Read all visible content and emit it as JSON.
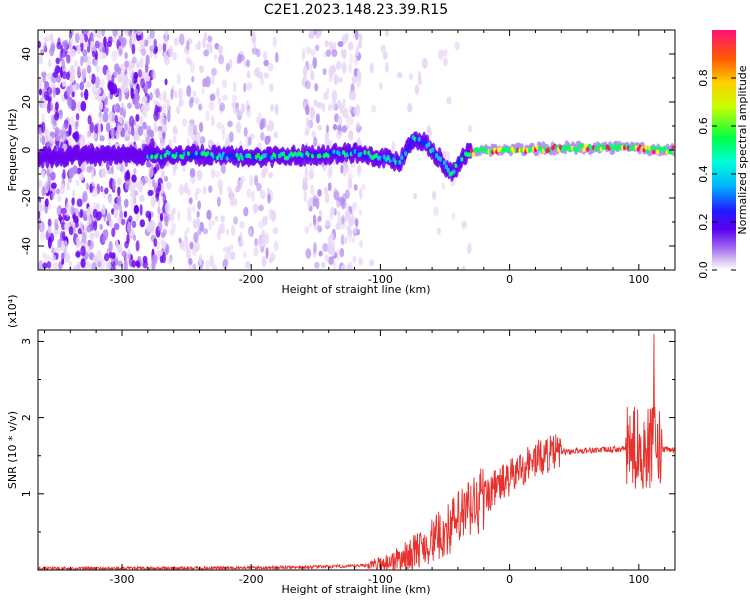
{
  "figure": {
    "title": "C2E1.2023.148.23.39.R15"
  },
  "chart_data": [
    {
      "type": "heatmap",
      "xlabel": "Height of straight line (km)",
      "ylabel": "Frequency (Hz)",
      "xlim": [
        -365,
        128
      ],
      "ylim": [
        -50,
        50
      ],
      "x_ticks": [
        -300,
        -200,
        -100,
        0,
        100
      ],
      "y_ticks": [
        -40,
        -20,
        0,
        20,
        40
      ],
      "colorbar": {
        "label": "Normalized spectral amplitude",
        "range": [
          0,
          1
        ],
        "ticks": [
          0.0,
          0.2,
          0.4,
          0.6,
          0.8
        ]
      },
      "colormap": [
        "#ffffff",
        "#e8d6f5",
        "#b48cf0",
        "#6a00f0",
        "#1f1fff",
        "#00c8ff",
        "#00ff66",
        "#ffff00",
        "#ff6600",
        "#ff1060"
      ],
      "ridge": [
        {
          "x": -365,
          "y": -3
        },
        {
          "x": -300,
          "y": -2
        },
        {
          "x": -250,
          "y": -2
        },
        {
          "x": -200,
          "y": -3
        },
        {
          "x": -150,
          "y": -2
        },
        {
          "x": -120,
          "y": -1
        },
        {
          "x": -100,
          "y": -3
        },
        {
          "x": -85,
          "y": -5
        },
        {
          "x": -75,
          "y": 5
        },
        {
          "x": -65,
          "y": 3
        },
        {
          "x": -55,
          "y": -3
        },
        {
          "x": -45,
          "y": -10
        },
        {
          "x": -35,
          "y": -2
        },
        {
          "x": -20,
          "y": 0
        },
        {
          "x": 0,
          "y": 0
        },
        {
          "x": 50,
          "y": 1
        },
        {
          "x": 100,
          "y": 1
        },
        {
          "x": 110,
          "y": 0
        },
        {
          "x": 128,
          "y": 0
        }
      ]
    },
    {
      "type": "line",
      "xlabel": "Height of straight line (km)",
      "ylabel": "SNR (10 * v/v)",
      "y_multiplier": "(x10⁴)",
      "xlim": [
        -365,
        128
      ],
      "ylim": [
        0,
        3.15
      ],
      "x_ticks": [
        -300,
        -200,
        -100,
        0,
        100
      ],
      "y_ticks": [
        1,
        2,
        3
      ],
      "color": "#e8302c",
      "series": [
        {
          "x": [
            -365,
            -300,
            -200,
            -150,
            -120,
            -100,
            -90,
            -80,
            -70,
            -60,
            -50,
            -40,
            -30,
            -20,
            -10,
            0,
            10,
            20,
            30,
            40,
            60,
            80,
            100,
            110,
            115,
            128
          ],
          "y": [
            0.02,
            0.02,
            0.03,
            0.04,
            0.05,
            0.08,
            0.12,
            0.18,
            0.28,
            0.38,
            0.5,
            0.65,
            0.8,
            0.95,
            1.1,
            1.2,
            1.35,
            1.45,
            1.52,
            1.55,
            1.57,
            1.58,
            1.6,
            1.6,
            1.58,
            1.58
          ]
        }
      ]
    }
  ]
}
